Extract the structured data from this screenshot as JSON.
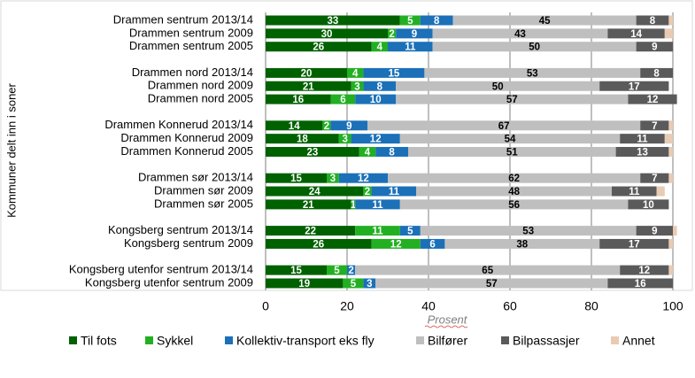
{
  "chart_data": {
    "type": "stacked_barh",
    "categories": [
      "Drammen sentrum 2013/14",
      "Drammen sentrum 2009",
      "Drammen sentrum 2005",
      null,
      "Drammen nord 2013/14",
      "Drammen nord 2009",
      "Drammen nord 2005",
      null,
      "Drammen Konnerud 2013/14",
      "Drammen Konnerud 2009",
      "Drammen Konnerud 2005",
      null,
      "Drammen sør 2013/14",
      "Drammen sør 2009",
      "Drammen sør 2005",
      null,
      "Kongsberg sentrum 2013/14",
      "Kongsberg sentrum 2009",
      null,
      "Kongsberg utenfor sentrum 2013/14",
      "Kongsberg utenfor sentrum 2009"
    ],
    "series": [
      {
        "name": "Til fots",
        "color": "#006100",
        "label_color": "#ffffff",
        "data_labels": true,
        "values": [
          33,
          30,
          26,
          null,
          20,
          21,
          16,
          null,
          14,
          18,
          23,
          null,
          15,
          24,
          21,
          null,
          22,
          26,
          null,
          15,
          19
        ]
      },
      {
        "name": "Sykkel",
        "color": "#22b022",
        "label_color": "#ffffff",
        "data_labels": true,
        "values": [
          5,
          2,
          4,
          null,
          4,
          3,
          6,
          null,
          2,
          3,
          4,
          null,
          3,
          2,
          1,
          null,
          11,
          12,
          null,
          5,
          5
        ]
      },
      {
        "name": "Kollektiv-transport eks fly",
        "color": "#1b70b8",
        "label_color": "#ffffff",
        "data_labels": true,
        "values": [
          8,
          9,
          11,
          null,
          15,
          8,
          10,
          null,
          9,
          12,
          8,
          null,
          12,
          11,
          11,
          null,
          5,
          6,
          null,
          2,
          3
        ]
      },
      {
        "name": "Bilfører",
        "color": "#bfbfbf",
        "label_color": "#000000",
        "data_labels": true,
        "values": [
          45,
          43,
          50,
          null,
          53,
          50,
          57,
          null,
          67,
          54,
          51,
          null,
          62,
          48,
          56,
          null,
          53,
          38,
          null,
          65,
          57
        ]
      },
      {
        "name": "Bilpassasjer",
        "color": "#5a5a5a",
        "label_color": "#ffffff",
        "data_labels": true,
        "values": [
          8,
          14,
          9,
          null,
          8,
          17,
          12,
          null,
          7,
          11,
          13,
          null,
          7,
          11,
          10,
          null,
          9,
          17,
          null,
          12,
          16
        ]
      },
      {
        "name": "Annet",
        "color": "#e8cbb3",
        "label_color": "#000000",
        "data_labels": false,
        "values": [
          1,
          2,
          0,
          null,
          0,
          0,
          0,
          null,
          1,
          2,
          1,
          null,
          1,
          2,
          0,
          null,
          1,
          1,
          null,
          1,
          0
        ]
      }
    ],
    "xlabel": "Prosent",
    "ylabel": "Kommuner delt inn i soner",
    "xlim": [
      0,
      100
    ],
    "xticks": [
      0,
      20,
      40,
      60,
      80,
      100
    ],
    "grid": true,
    "legend": "bottom"
  }
}
